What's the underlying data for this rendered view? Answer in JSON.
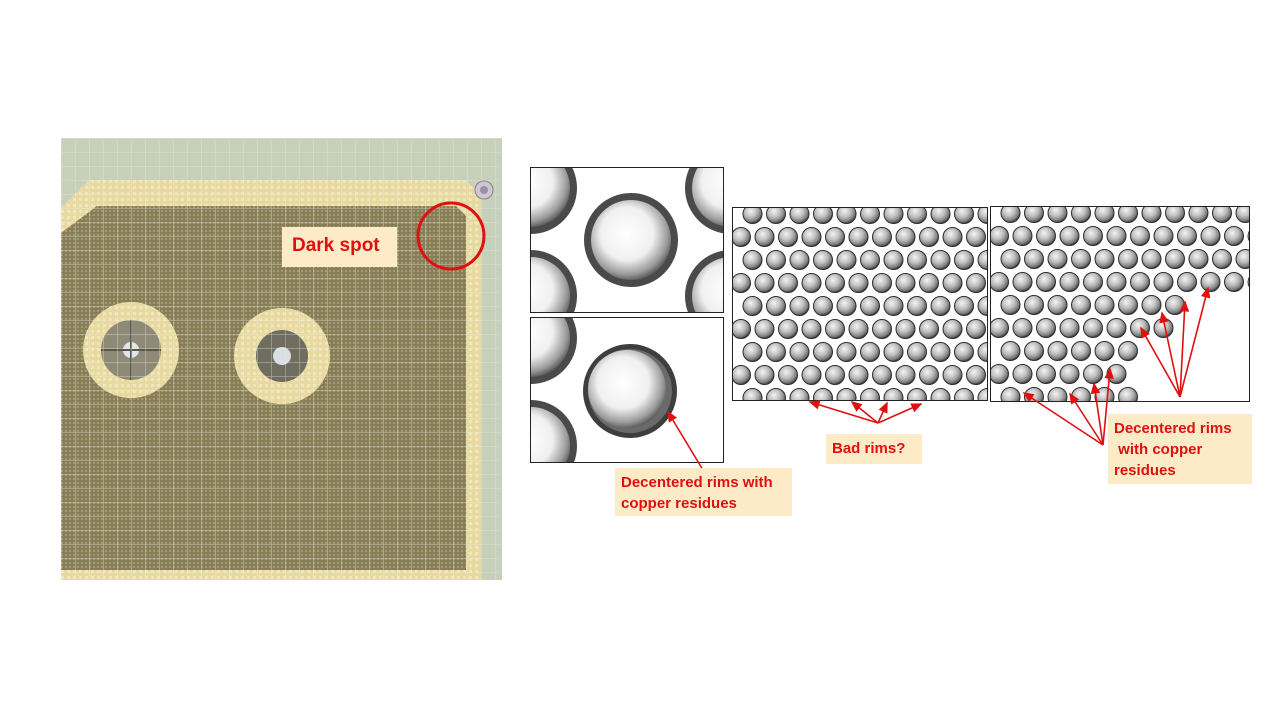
{
  "callouts": {
    "dark_spot": "Dark spot",
    "decentered_left": [
      "Decentered rims with",
      "copper residues"
    ],
    "bad_rims": "Bad rims?",
    "decentered_right": [
      "Decentered rims",
      " with copper",
      "residues"
    ]
  },
  "colors": {
    "annotation_red": "#e01010",
    "callout_fill": "#fdebc8",
    "photo_mesh": "#8a8460",
    "photo_frame": "#e6d9a3",
    "photo_background": "#c9d3bd"
  }
}
